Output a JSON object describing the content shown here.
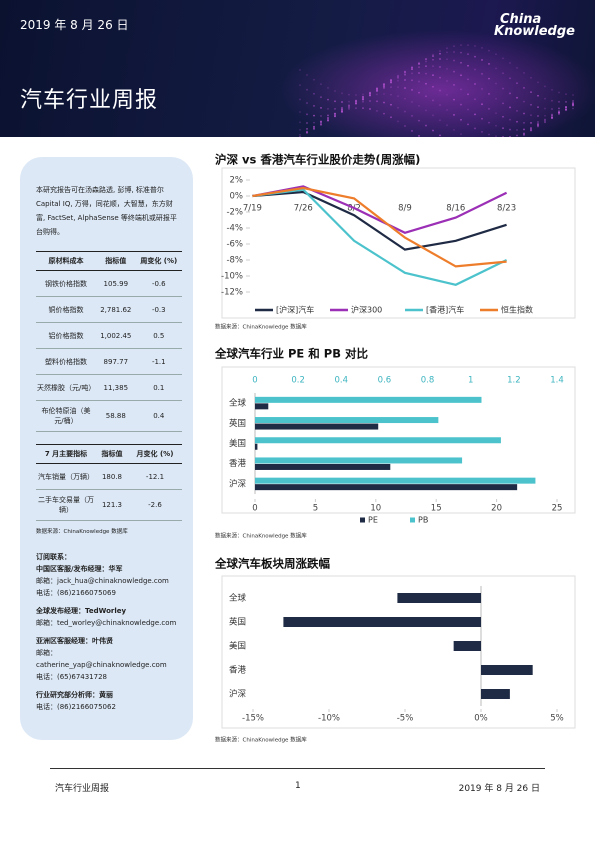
{
  "header": {
    "date": "2019 年 8 月 26 日",
    "logo": [
      "China",
      "Knowledge"
    ],
    "title": "汽车行业周报"
  },
  "sidebar": {
    "intro": "本研究报告可在汤森路透, 彭博, 标准普尔 Capital IQ, 万得，同花顺，大智慧，东方财富, FactSet, AlphaSense 等终端机或研报平台购得。",
    "table1": {
      "header": [
        "原材料成本",
        "指标值",
        "周变化 (%)"
      ],
      "rows": [
        [
          "钢铁价格指数",
          "105.99",
          "-0.6"
        ],
        [
          "铜价格指数",
          "2,781.62",
          "-0.3"
        ],
        [
          "铝价格指数",
          "1,002.45",
          "0.5"
        ],
        [
          "塑料价格指数",
          "897.77",
          "-1.1"
        ],
        [
          "天然橡胶（元/吨）",
          "11,385",
          "0.1"
        ],
        [
          "布伦特原油（美元/桶）",
          "58.88",
          "0.4"
        ]
      ]
    },
    "table2": {
      "header": [
        "7 月主要指标",
        "指标值",
        "月变化 (%)"
      ],
      "rows": [
        [
          "汽车销量（万辆）",
          "180.8",
          "-12.1"
        ],
        [
          "二手车交易量（万辆）",
          "121.3",
          "-2.6"
        ]
      ]
    },
    "note": "数据来源：ChinaKnowledge 数据库",
    "contacts_title": "订阅联系：",
    "contacts": [
      {
        "title": "中国区客服/发布经理：华军",
        "lines": [
          "邮箱：jack_hua@chinaknowledge.com",
          "电话：(86)2166075069"
        ]
      },
      {
        "title": "全球发布经理：TedWorley",
        "lines": [
          "邮箱：ted_worley@chinaknowledge.com"
        ]
      },
      {
        "title": "亚洲区客服经理：叶伟贤",
        "lines": [
          "邮箱：catherine_yap@chinaknowledge.com",
          "电话：(65)67431728"
        ]
      },
      {
        "title": "行业研究部分析师：黄丽",
        "lines": [
          "电话：(86)2166075062"
        ]
      }
    ]
  },
  "chart_data": [
    {
      "type": "line",
      "title": "沪深 vs 香港汽车行业股价走势(周涨幅)",
      "source": "数据来源：ChinaKnowledge 数据库",
      "categories": [
        "7/19",
        "7/26",
        "8/2",
        "8/9",
        "8/16",
        "8/23"
      ],
      "ylim": [
        -12,
        2
      ],
      "yticks": [
        {
          "value": 2,
          "label": "2%"
        },
        {
          "value": 0,
          "label": "0%"
        },
        {
          "value": -2,
          "label": "-2%"
        },
        {
          "value": -4,
          "label": "-4%"
        },
        {
          "value": -6,
          "label": "-6%"
        },
        {
          "value": -8,
          "label": "-8%"
        },
        {
          "value": -10,
          "label": "-10%"
        },
        {
          "value": -12,
          "label": "-12%"
        }
      ],
      "series": [
        {
          "name": "[沪深]汽车",
          "color": "#1f2a44",
          "values": [
            0,
            0.5,
            -2.4,
            -6.7,
            -5.6,
            -3.6
          ]
        },
        {
          "name": "沪深300",
          "color": "#9b2fb5",
          "values": [
            0,
            1.2,
            -1.5,
            -4.6,
            -2.7,
            0.4
          ]
        },
        {
          "name": "[香港]汽车",
          "color": "#4cc3cc",
          "values": [
            0,
            0.8,
            -5.6,
            -9.6,
            -11.1,
            -8
          ]
        },
        {
          "name": "恒生指数",
          "color": "#ee7d2b",
          "values": [
            0,
            1,
            -0.3,
            -5.2,
            -8.8,
            -8.2
          ]
        }
      ],
      "legend": "bottom"
    },
    {
      "type": "hbar",
      "title": "全球汽车行业 PE 和 PB 对比",
      "source": "数据来源：ChinaKnowledge 数据库",
      "categories": [
        "全球",
        "英国",
        "美国",
        "香港",
        "沪深"
      ],
      "xlim": [
        0,
        25
      ],
      "xticks": [
        0,
        5,
        10,
        15,
        20,
        25
      ],
      "x2lim": [
        0,
        1.4
      ],
      "x2ticks": [
        0,
        0.2,
        0.4,
        0.6,
        0.8,
        1,
        1.2,
        1.4
      ],
      "series": [
        {
          "name": "PE",
          "color": "#1f2a44",
          "values": [
            1.1,
            10.2,
            0.2,
            11.2,
            21.7
          ]
        },
        {
          "name": "PB",
          "color": "#4cc3cc",
          "axis": "x2",
          "values": [
            1.05,
            0.85,
            1.14,
            0.96,
            1.3
          ]
        }
      ],
      "legend": "bottom"
    },
    {
      "type": "hbar",
      "title": "全球汽车板块周涨跌幅",
      "source": "数据来源：ChinaKnowledge 数据库",
      "categories": [
        "全球",
        "英国",
        "美国",
        "香港",
        "沪深"
      ],
      "xlim": [
        -15,
        5
      ],
      "xticks": [
        {
          "value": -15,
          "label": "-15%"
        },
        {
          "value": -10,
          "label": "-10%"
        },
        {
          "value": -5,
          "label": "-5%"
        },
        {
          "value": 0,
          "label": "0%"
        },
        {
          "value": 5,
          "label": "5%"
        }
      ],
      "color": "#1f2a44",
      "values": [
        -5.5,
        -13,
        -1.8,
        3.4,
        1.9
      ]
    }
  ],
  "footer": {
    "left": "汽车行业周报",
    "page": "1",
    "right": "2019 年 8 月 26 日"
  }
}
